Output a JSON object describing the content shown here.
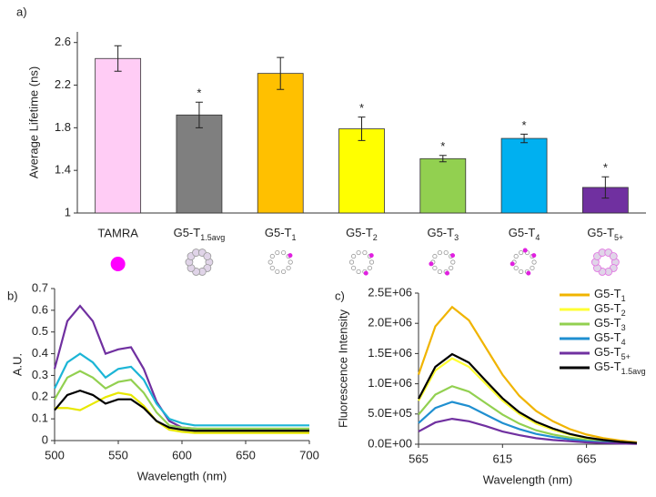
{
  "chart_data": [
    {
      "type": "bar",
      "panel": "a)",
      "y_label": "Average Lifetime (ns)",
      "categories": [
        "TAMRA",
        "G5-T1.5avg",
        "G5-T1",
        "G5-T2",
        "G5-T3",
        "G5-T4",
        "G5-T5+"
      ],
      "values": [
        2.45,
        1.92,
        2.31,
        1.79,
        1.51,
        1.7,
        1.24
      ],
      "errors": [
        0.12,
        0.12,
        0.15,
        0.11,
        0.03,
        0.04,
        0.1
      ],
      "significance": [
        null,
        "*",
        null,
        "*",
        "*",
        "*",
        "*"
      ],
      "colors": [
        "#ffccf5",
        "#7f7f7f",
        "#ffc000",
        "#ffff00",
        "#92d050",
        "#00b0f0",
        "#7030a0"
      ],
      "ylim": [
        1,
        2.7
      ],
      "yticks": [
        1,
        1.4,
        1.8,
        2.2,
        2.6
      ]
    },
    {
      "type": "line",
      "panel": "b)",
      "x_label": "Wavelength (nm)",
      "y_label": "A.U.",
      "x": [
        500,
        510,
        520,
        530,
        540,
        550,
        560,
        570,
        580,
        590,
        600,
        610,
        620,
        630,
        640,
        650,
        660,
        670,
        680,
        690,
        700
      ],
      "series": [
        {
          "color": "#7030a0",
          "values": [
            0.33,
            0.55,
            0.62,
            0.55,
            0.4,
            0.42,
            0.43,
            0.33,
            0.18,
            0.09,
            0.06,
            0.055,
            0.05,
            0.05,
            0.05,
            0.05,
            0.05,
            0.05,
            0.05,
            0.05,
            0.05
          ]
        },
        {
          "color": "#1cb5d6",
          "values": [
            0.24,
            0.36,
            0.4,
            0.36,
            0.29,
            0.33,
            0.34,
            0.28,
            0.17,
            0.1,
            0.08,
            0.07,
            0.07,
            0.07,
            0.07,
            0.07,
            0.07,
            0.07,
            0.07,
            0.07,
            0.07
          ]
        },
        {
          "color": "#92d050",
          "values": [
            0.19,
            0.29,
            0.32,
            0.29,
            0.24,
            0.27,
            0.28,
            0.22,
            0.13,
            0.07,
            0.06,
            0.055,
            0.055,
            0.055,
            0.055,
            0.055,
            0.055,
            0.055,
            0.055,
            0.055,
            0.055
          ]
        },
        {
          "color": "#e8e800",
          "values": [
            0.15,
            0.15,
            0.14,
            0.17,
            0.2,
            0.22,
            0.21,
            0.16,
            0.09,
            0.05,
            0.04,
            0.035,
            0.035,
            0.035,
            0.035,
            0.035,
            0.035,
            0.035,
            0.035,
            0.035,
            0.035
          ]
        },
        {
          "color": "#000000",
          "values": [
            0.14,
            0.21,
            0.23,
            0.21,
            0.17,
            0.19,
            0.19,
            0.15,
            0.09,
            0.06,
            0.05,
            0.045,
            0.045,
            0.045,
            0.045,
            0.045,
            0.045,
            0.045,
            0.045,
            0.045,
            0.045
          ]
        }
      ],
      "xlim": [
        500,
        700
      ],
      "xticks": [
        500,
        550,
        600,
        650,
        700
      ],
      "ylim": [
        0,
        0.7
      ],
      "yticks": [
        0,
        0.1,
        0.2,
        0.3,
        0.4,
        0.5,
        0.6,
        0.7
      ]
    },
    {
      "type": "line",
      "panel": "c)",
      "x_label": "Wavelength (nm)",
      "y_label": "Fluorescence  Intensity",
      "x": [
        565,
        575,
        585,
        595,
        605,
        615,
        625,
        635,
        645,
        655,
        665,
        675,
        685,
        695
      ],
      "series": [
        {
          "name": "G5-T1",
          "color": "#f0b400",
          "values": [
            1150000,
            1950000,
            2270000,
            2050000,
            1600000,
            1150000,
            800000,
            550000,
            380000,
            250000,
            160000,
            100000,
            60000,
            30000
          ]
        },
        {
          "name": "G5-T2",
          "color": "#ffff33",
          "values": [
            720000,
            1220000,
            1420000,
            1280000,
            1000000,
            720000,
            500000,
            340000,
            240000,
            160000,
            100000,
            60000,
            40000,
            20000
          ]
        },
        {
          "name": "G5-T3",
          "color": "#92d050",
          "values": [
            490000,
            820000,
            960000,
            870000,
            680000,
            490000,
            340000,
            230000,
            160000,
            110000,
            70000,
            40000,
            30000,
            10000
          ]
        },
        {
          "name": "G5-T4",
          "color": "#1f8fd0",
          "values": [
            350000,
            600000,
            700000,
            630000,
            490000,
            350000,
            250000,
            170000,
            120000,
            80000,
            50000,
            30000,
            20000,
            10000
          ]
        },
        {
          "name": "G5-T5+",
          "color": "#7030a0",
          "values": [
            210000,
            360000,
            420000,
            380000,
            300000,
            210000,
            150000,
            100000,
            70000,
            50000,
            30000,
            20000,
            10000,
            5000
          ]
        },
        {
          "name": "G5-T1.5avg",
          "color": "#000000",
          "values": [
            750000,
            1280000,
            1490000,
            1350000,
            1050000,
            760000,
            530000,
            370000,
            260000,
            170000,
            110000,
            70000,
            40000,
            20000
          ]
        }
      ],
      "xlim": [
        565,
        695
      ],
      "xticks": [
        565,
        615,
        665
      ],
      "ylim": [
        0,
        2500000
      ],
      "yticks": [
        {
          "value": 0,
          "label": "0.0E+00"
        },
        {
          "value": 500000,
          "label": "5.0E+05"
        },
        {
          "value": 1000000,
          "label": "1.0E+06"
        },
        {
          "value": 1500000,
          "label": "1.5E+06"
        },
        {
          "value": 2000000,
          "label": "2.0E+06"
        },
        {
          "value": 2500000,
          "label": "2.5E+06"
        }
      ],
      "legend": "top-right"
    }
  ]
}
